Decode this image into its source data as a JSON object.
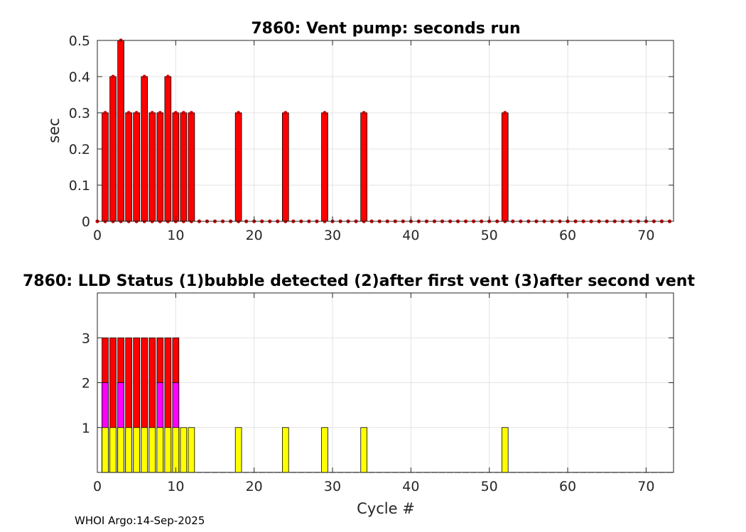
{
  "footer": "WHOI Argo:14-Sep-2025",
  "chart_data": [
    {
      "type": "bar",
      "title": "7860: Vent pump: seconds run",
      "xlabel": "",
      "ylabel": "sec",
      "xlim": [
        0,
        73.5
      ],
      "ylim": [
        0,
        0.5
      ],
      "xticks": [
        0,
        10,
        20,
        30,
        40,
        50,
        60,
        70
      ],
      "yticks": [
        0,
        0.1,
        0.2,
        0.3,
        0.4,
        0.5
      ],
      "ytick_labels": [
        "0",
        "0.1",
        "0.2",
        "0.3",
        "0.4",
        "0.5"
      ],
      "grid": true,
      "bar_color": "#ff0000",
      "marker_color": "#cc0000",
      "x": [
        0,
        1,
        2,
        3,
        4,
        5,
        6,
        7,
        8,
        9,
        10,
        11,
        12,
        13,
        14,
        15,
        16,
        17,
        18,
        19,
        20,
        21,
        22,
        23,
        24,
        25,
        26,
        27,
        28,
        29,
        30,
        31,
        32,
        33,
        34,
        35,
        36,
        37,
        38,
        39,
        40,
        41,
        42,
        43,
        44,
        45,
        46,
        47,
        48,
        49,
        50,
        51,
        52,
        53,
        54,
        55,
        56,
        57,
        58,
        59,
        60,
        61,
        62,
        63,
        64,
        65,
        66,
        67,
        68,
        69,
        70,
        71,
        72,
        73
      ],
      "values": [
        0,
        0.3,
        0.4,
        0.5,
        0.3,
        0.3,
        0.4,
        0.3,
        0.3,
        0.4,
        0.3,
        0.3,
        0.3,
        0,
        0,
        0,
        0,
        0,
        0.3,
        0,
        0,
        0,
        0,
        0,
        0.3,
        0,
        0,
        0,
        0,
        0.3,
        0,
        0,
        0,
        0,
        0.3,
        0,
        0,
        0,
        0,
        0,
        0,
        0,
        0,
        0,
        0,
        0,
        0,
        0,
        0,
        0,
        0,
        0,
        0.3,
        0,
        0,
        0,
        0,
        0,
        0,
        0,
        0,
        0,
        0,
        0,
        0,
        0,
        0,
        0,
        0,
        0,
        0,
        0,
        0,
        0
      ]
    },
    {
      "type": "bar",
      "title": "7860: LLD Status   (1)bubble detected   (2)after first vent  (3)after second vent",
      "xlabel": "Cycle #",
      "ylabel": "",
      "xlim": [
        0,
        73.5
      ],
      "ylim": [
        0,
        4
      ],
      "xticks": [
        0,
        10,
        20,
        30,
        40,
        50,
        60,
        70
      ],
      "yticks": [
        1,
        2,
        3
      ],
      "ytick_labels": [
        "1",
        "2",
        "3"
      ],
      "grid": true,
      "status_colors": {
        "1": "#ffff00",
        "2": "#ff00ff",
        "3": "#ff0000"
      },
      "x": [
        1,
        2,
        3,
        4,
        5,
        6,
        7,
        8,
        9,
        10,
        11,
        12,
        18,
        24,
        29,
        34,
        52
      ],
      "values": [
        3,
        3,
        3,
        3,
        3,
        3,
        3,
        3,
        3,
        3,
        1,
        1,
        1,
        1,
        1,
        1,
        1
      ],
      "level2_color": [
        "magenta",
        "red",
        "magenta",
        "red",
        "red",
        "red",
        "red",
        "magenta",
        "red",
        "magenta",
        "",
        "",
        "",
        "",
        "",
        "",
        ""
      ]
    }
  ]
}
